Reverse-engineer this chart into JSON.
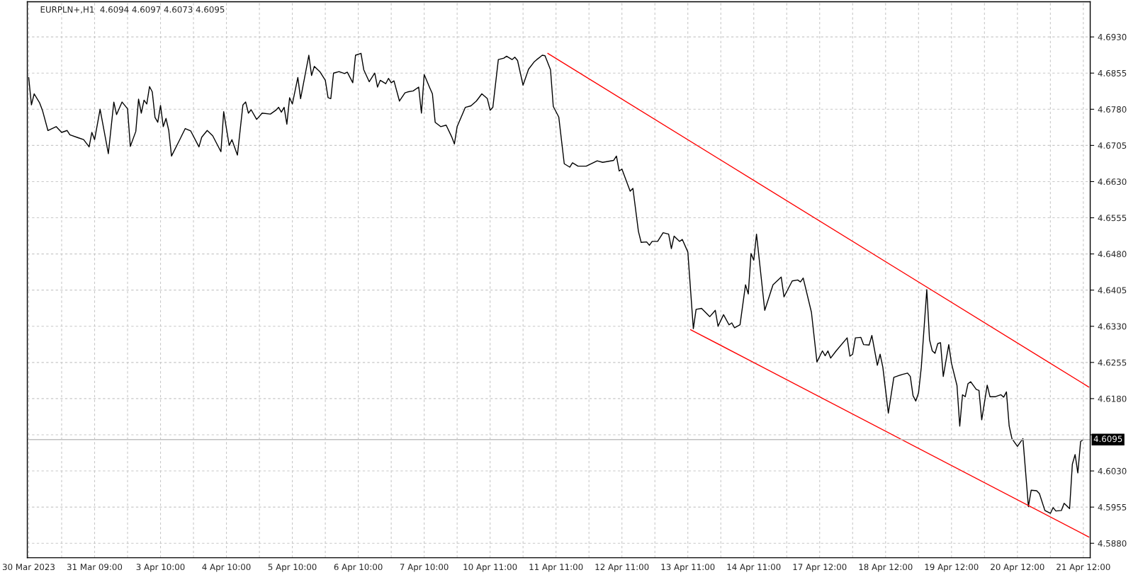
{
  "chart_data": {
    "type": "line",
    "title": "EURPLN+,H1  4.6094 4.6097 4.6073 4.6095",
    "categories": [
      "30 Mar 2023",
      null,
      null,
      null,
      null,
      null,
      null,
      null,
      null,
      null,
      null,
      null,
      null,
      null,
      null,
      null,
      null,
      null,
      null,
      null,
      null,
      null,
      null,
      null,
      "31 Mar 09:00",
      null,
      null,
      null,
      null,
      null,
      null,
      null,
      null,
      null,
      null,
      null,
      null,
      null,
      null,
      null,
      null,
      null,
      null,
      null,
      null,
      null,
      null,
      null,
      "3 Apr 10:00",
      null,
      null,
      null,
      null,
      null,
      null,
      null,
      null,
      null,
      null,
      null,
      null,
      null,
      null,
      null,
      null,
      null,
      null,
      null,
      null,
      null,
      null,
      null,
      "4 Apr 10:00",
      null,
      null,
      null,
      null,
      null,
      null,
      null,
      null,
      null,
      null,
      null,
      null,
      null,
      null,
      null,
      null,
      null,
      null,
      null,
      null,
      null,
      null,
      null,
      "5 Apr 10:00",
      null,
      null,
      null,
      null,
      null,
      null,
      null,
      null,
      null,
      null,
      null,
      null,
      null,
      null,
      null,
      null,
      null,
      null,
      null,
      null,
      null,
      null,
      null,
      "6 Apr 10:00",
      null,
      null,
      null,
      null,
      null,
      null,
      null,
      null,
      null,
      null,
      null,
      null,
      null,
      null,
      null,
      null,
      null,
      null,
      null,
      null,
      null,
      null,
      null,
      "7 Apr 10:00",
      null,
      null,
      null,
      null,
      null,
      null,
      null,
      null,
      null,
      null,
      null,
      null,
      null,
      null,
      null,
      null,
      null,
      null,
      null,
      null,
      null,
      null,
      null,
      "10 Apr 11:00",
      null,
      null,
      null,
      null,
      null,
      null,
      null,
      null,
      null,
      null,
      null,
      null,
      null,
      null,
      null,
      null,
      null,
      null,
      null,
      null,
      null,
      null,
      null,
      "11 Apr 11:00",
      null,
      null,
      null,
      null,
      null,
      null,
      null,
      null,
      null,
      null,
      null,
      null,
      null,
      null,
      null,
      null,
      null,
      null,
      null,
      null,
      null,
      null,
      null,
      "12 Apr 11:00",
      null,
      null,
      null,
      null,
      null,
      null,
      null,
      null,
      null,
      null,
      null,
      null,
      null,
      null,
      null,
      null,
      null,
      null,
      null,
      null,
      null,
      null,
      null,
      "13 Apr 11:00",
      null,
      null,
      null,
      null,
      null,
      null,
      null,
      null,
      null,
      null,
      null,
      null,
      null,
      null,
      null,
      null,
      null,
      null,
      null,
      null,
      null,
      null,
      null,
      "14 Apr 11:00",
      null,
      null,
      null,
      null,
      null,
      null,
      null,
      null,
      null,
      null,
      null,
      null,
      null,
      null,
      null,
      null,
      null,
      null,
      null,
      null,
      null,
      null,
      null,
      "17 Apr 12:00",
      null,
      null,
      null,
      null,
      null,
      null,
      null,
      null,
      null,
      null,
      null,
      null,
      null,
      null,
      null,
      null,
      null,
      null,
      null,
      null,
      null,
      null,
      null,
      "18 Apr 12:00",
      null,
      null,
      null,
      null,
      null,
      null,
      null,
      null,
      null,
      null,
      null,
      null,
      null,
      null,
      null,
      null,
      null,
      null,
      null,
      null,
      null,
      null,
      null,
      "19 Apr 12:00",
      null,
      null,
      null,
      null,
      null,
      null,
      null,
      null,
      null,
      null,
      null,
      null,
      null,
      null,
      null,
      null,
      null,
      null,
      null,
      null,
      null,
      null,
      null,
      "20 Apr 12:00",
      null,
      null,
      null,
      null,
      null,
      null,
      null,
      null,
      null,
      null,
      null,
      null,
      null,
      null,
      null,
      null,
      null,
      null,
      null,
      null,
      null,
      null,
      null,
      "21 Apr 12:00",
      null,
      null
    ],
    "ylim": [
      4.585,
      4.7003
    ],
    "yticks": [
      {
        "value": 4.588,
        "label": "4.5880"
      },
      {
        "value": 4.5955,
        "label": "4.5955"
      },
      {
        "value": 4.603,
        "label": "4.6030"
      },
      {
        "value": 4.6105,
        "label": null
      },
      {
        "value": 4.618,
        "label": "4.6180"
      },
      {
        "value": 4.6255,
        "label": "4.6255"
      },
      {
        "value": 4.633,
        "label": "4.6330"
      },
      {
        "value": 4.6405,
        "label": "4.6405"
      },
      {
        "value": 4.648,
        "label": "4.6480"
      },
      {
        "value": 4.6555,
        "label": "4.6555"
      },
      {
        "value": 4.663,
        "label": "4.6630"
      },
      {
        "value": 4.6705,
        "label": "4.6705"
      },
      {
        "value": 4.678,
        "label": "4.6780"
      },
      {
        "value": 4.6855,
        "label": "4.6855"
      },
      {
        "value": 4.693,
        "label": "4.6930"
      }
    ],
    "grid": true,
    "ref_lines": [
      {
        "axis": "y",
        "value": 4.6095,
        "label": "4.6095",
        "color": "#c0c0c0"
      }
    ],
    "series": [
      {
        "color": "#000000",
        "values": [
          4.6846,
          4.6789,
          4.6812,
          null,
          4.6793,
          4.6778,
          null,
          4.6736,
          null,
          null,
          4.6744,
          null,
          4.6732,
          null,
          4.6736,
          4.6727,
          null,
          null,
          4.6721,
          null,
          4.6717,
          null,
          4.6702,
          4.6732,
          4.6717,
          null,
          4.678,
          null,
          null,
          4.6688,
          null,
          4.6795,
          4.6769,
          null,
          4.6795,
          null,
          4.6781,
          4.6703,
          null,
          4.6734,
          4.6801,
          4.6772,
          4.6799,
          4.6791,
          4.6827,
          4.6816,
          4.6763,
          4.6753,
          4.6788,
          4.6744,
          4.6761,
          4.6736,
          4.6683,
          null,
          null,
          4.6717,
          null,
          4.674,
          null,
          4.6735,
          null,
          null,
          4.6702,
          4.6722,
          null,
          4.6736,
          null,
          4.6725,
          null,
          null,
          4.6692,
          4.6775,
          null,
          4.6705,
          4.6717,
          null,
          4.6685,
          null,
          4.6789,
          4.6795,
          4.6772,
          4.6779,
          null,
          4.6759,
          null,
          4.6772,
          null,
          null,
          4.677,
          null,
          4.6778,
          4.6784,
          4.6774,
          4.6784,
          4.6749,
          4.6804,
          4.6791,
          null,
          4.6846,
          4.6802,
          null,
          null,
          4.6892,
          4.685,
          4.6869,
          null,
          4.6858,
          null,
          4.684,
          4.6804,
          4.6802,
          4.6855,
          null,
          4.6858,
          null,
          4.6854,
          4.6857,
          null,
          4.6835,
          4.6892,
          null,
          4.6896,
          4.6862,
          null,
          4.6837,
          null,
          4.6855,
          4.6826,
          4.684,
          null,
          4.6833,
          4.6844,
          4.6835,
          4.6839,
          null,
          4.6797,
          null,
          4.6814,
          4.6816,
          null,
          4.6818,
          null,
          4.6826,
          4.6772,
          4.6852,
          null,
          4.6825,
          4.6812,
          4.6753,
          null,
          4.6744,
          null,
          4.6747,
          null,
          4.6723,
          4.6708,
          4.6744,
          null,
          null,
          4.6784,
          null,
          4.6787,
          null,
          4.6797,
          null,
          4.6812,
          null,
          4.6802,
          4.6778,
          4.6784,
          null,
          4.6883,
          null,
          4.6886,
          4.689,
          null,
          4.6883,
          4.6888,
          4.6881,
          null,
          4.683,
          null,
          4.6863,
          null,
          4.6878,
          4.6883,
          null,
          4.6892,
          4.6891,
          null,
          4.6862,
          4.6786,
          null,
          4.6764,
          null,
          4.6667,
          null,
          4.666,
          4.6669,
          null,
          4.6662,
          null,
          null,
          4.6662,
          null,
          null,
          null,
          4.6673,
          null,
          4.667,
          null,
          null,
          null,
          4.6674,
          4.6683,
          4.6652,
          4.6656,
          null,
          null,
          4.661,
          4.6616,
          null,
          4.6527,
          4.6504,
          null,
          4.6505,
          4.6498,
          4.6506,
          null,
          4.6506,
          null,
          4.6524,
          null,
          4.6521,
          4.6491,
          4.6517,
          null,
          4.6506,
          4.651,
          null,
          4.6484,
          null,
          4.6325,
          4.6365,
          null,
          4.6367,
          null,
          null,
          4.635,
          null,
          4.6363,
          4.633,
          null,
          4.6354,
          null,
          4.6333,
          4.6337,
          4.6327,
          null,
          4.6333,
          null,
          4.6416,
          4.6397,
          4.6481,
          4.6467,
          4.6521,
          null,
          null,
          4.6363,
          null,
          null,
          4.6416,
          null,
          null,
          4.6432,
          4.6391,
          null,
          null,
          4.6424,
          null,
          4.6426,
          4.6422,
          4.643,
          null,
          null,
          4.6359,
          null,
          4.6256,
          null,
          4.6279,
          4.6269,
          4.6279,
          4.6264,
          null,
          4.6279,
          null,
          null,
          null,
          4.6306,
          4.6268,
          4.6272,
          4.6306,
          null,
          4.6307,
          4.6292,
          null,
          4.6291,
          4.6311,
          null,
          4.6249,
          4.6272,
          4.6245,
          null,
          4.615,
          null,
          4.6224,
          null,
          4.6228,
          4.623,
          null,
          4.6233,
          4.6226,
          4.6186,
          4.6175,
          4.6192,
          4.6245,
          null,
          4.6406,
          4.6302,
          4.6279,
          4.6274,
          4.6294,
          4.6296,
          4.6226,
          null,
          4.6292,
          4.6253,
          null,
          4.6207,
          4.6123,
          4.6188,
          4.6184,
          4.6211,
          4.6215,
          null,
          4.6199,
          4.6197,
          4.6136,
          null,
          4.6208,
          4.6184,
          null,
          4.6184,
          null,
          4.6188,
          4.6183,
          4.6194,
          4.6123,
          4.6097,
          null,
          4.6081,
          null,
          4.6097,
          null,
          4.5956,
          4.599,
          null,
          4.5989,
          4.5983,
          null,
          4.5948,
          null,
          4.5942,
          4.5954,
          4.5947,
          null,
          4.5948,
          4.5963,
          null,
          4.5952,
          4.6044,
          4.6064,
          4.6026,
          4.6091,
          4.6095,
          null,
          null
        ]
      },
      {
        "type": "line",
        "color": "#ff0000",
        "values": [
          null,
          null,
          null,
          null,
          null,
          null,
          null,
          null,
          null,
          null,
          null,
          null,
          null,
          null,
          null,
          null,
          null,
          null,
          null,
          null,
          null,
          null,
          null,
          null,
          null,
          null,
          null,
          null,
          null,
          null,
          null,
          null,
          null,
          null,
          null,
          null,
          null,
          null,
          null,
          null,
          null,
          null,
          null,
          null,
          null,
          null,
          null,
          null,
          null,
          null,
          null,
          null,
          null,
          null,
          null,
          null,
          null,
          null,
          null,
          null,
          null,
          null,
          null,
          null,
          null,
          null,
          null,
          null,
          null,
          null,
          null,
          null,
          null,
          null,
          null,
          null,
          null,
          null,
          null,
          null,
          null,
          null,
          null,
          null,
          null,
          null,
          null,
          null,
          null,
          null,
          null,
          null,
          null,
          null,
          null,
          null,
          null,
          null,
          null,
          null,
          null,
          null,
          null,
          null,
          null,
          null,
          null,
          null,
          null,
          null,
          null,
          null,
          null,
          null,
          null,
          null,
          null,
          null,
          null,
          null,
          null,
          null,
          null,
          null,
          null,
          null,
          null,
          null,
          null,
          null,
          null,
          null,
          null,
          null,
          null,
          null,
          null,
          null,
          null,
          null,
          null,
          null,
          null,
          null,
          null,
          null,
          null,
          null,
          null,
          null,
          null,
          null,
          null,
          null,
          null,
          null,
          null,
          null,
          null,
          null,
          null,
          null,
          null,
          null,
          null,
          null,
          null,
          null,
          null,
          null,
          null,
          null,
          null,
          null,
          null,
          null,
          null,
          null,
          null,
          null,
          null,
          null,
          null,
          null,
          null,
          null,
          null,
          null,
          null,
          4.6896,
          null,
          null,
          null,
          null,
          null,
          null,
          null,
          null,
          null,
          null,
          null,
          null,
          null,
          null,
          null,
          null,
          null,
          null,
          null,
          null,
          null,
          null,
          null,
          null,
          null,
          null,
          null,
          null,
          null,
          null,
          null,
          null,
          null,
          null,
          null,
          null,
          null,
          null,
          null,
          null,
          null,
          null,
          null,
          null,
          null,
          null,
          null,
          null,
          null,
          null,
          null,
          null,
          null,
          null,
          null,
          null,
          null,
          null,
          null,
          null,
          null,
          null,
          null,
          null,
          null,
          null,
          null,
          null,
          null,
          null,
          null,
          null,
          null,
          null,
          null,
          null,
          null,
          null,
          null,
          null,
          null,
          null,
          null,
          null,
          null,
          null,
          null,
          null,
          null,
          null,
          null,
          null,
          null,
          null,
          null,
          null,
          null,
          null,
          null,
          null,
          null,
          null,
          null,
          null,
          null,
          null,
          null,
          null,
          null,
          null,
          null,
          null,
          null,
          null,
          null,
          null,
          null,
          null,
          null,
          null,
          null,
          null,
          null,
          null,
          null,
          null,
          null,
          null,
          null,
          null,
          null,
          null,
          null,
          null,
          null,
          null,
          null,
          null,
          null,
          null,
          null,
          null,
          null,
          null,
          null,
          null,
          null,
          null,
          null,
          null,
          null,
          null,
          null,
          null,
          null,
          null,
          null,
          null,
          null,
          null,
          null,
          null,
          null,
          null,
          null,
          null,
          null,
          null,
          null,
          null,
          null,
          null,
          null,
          null,
          null,
          null,
          null,
          null,
          null,
          null,
          null,
          null,
          null,
          null,
          null,
          null,
          null,
          null,
          null,
          null,
          null,
          null,
          null,
          null,
          null,
          null,
          4.6204
        ]
      },
      {
        "type": "line",
        "color": "#ff0000",
        "values": [
          null,
          null,
          null,
          null,
          null,
          null,
          null,
          null,
          null,
          null,
          null,
          null,
          null,
          null,
          null,
          null,
          null,
          null,
          null,
          null,
          null,
          null,
          null,
          null,
          null,
          null,
          null,
          null,
          null,
          null,
          null,
          null,
          null,
          null,
          null,
          null,
          null,
          null,
          null,
          null,
          null,
          null,
          null,
          null,
          null,
          null,
          null,
          null,
          null,
          null,
          null,
          null,
          null,
          null,
          null,
          null,
          null,
          null,
          null,
          null,
          null,
          null,
          null,
          null,
          null,
          null,
          null,
          null,
          null,
          null,
          null,
          null,
          null,
          null,
          null,
          null,
          null,
          null,
          null,
          null,
          null,
          null,
          null,
          null,
          null,
          null,
          null,
          null,
          null,
          null,
          null,
          null,
          null,
          null,
          null,
          null,
          null,
          null,
          null,
          null,
          null,
          null,
          null,
          null,
          null,
          null,
          null,
          null,
          null,
          null,
          null,
          null,
          null,
          null,
          null,
          null,
          null,
          null,
          null,
          null,
          null,
          null,
          null,
          null,
          null,
          null,
          null,
          null,
          null,
          null,
          null,
          null,
          null,
          null,
          null,
          null,
          null,
          null,
          null,
          null,
          null,
          null,
          null,
          null,
          null,
          null,
          null,
          null,
          null,
          null,
          null,
          null,
          null,
          null,
          null,
          null,
          null,
          null,
          null,
          null,
          null,
          null,
          null,
          null,
          null,
          null,
          null,
          null,
          null,
          null,
          null,
          null,
          null,
          null,
          null,
          null,
          null,
          null,
          null,
          null,
          null,
          null,
          null,
          null,
          null,
          null,
          null,
          null,
          null,
          null,
          null,
          null,
          null,
          null,
          null,
          null,
          null,
          null,
          null,
          null,
          null,
          null,
          null,
          null,
          null,
          null,
          null,
          null,
          null,
          null,
          null,
          null,
          null,
          null,
          null,
          null,
          null,
          null,
          null,
          null,
          null,
          null,
          null,
          null,
          null,
          null,
          null,
          null,
          null,
          null,
          null,
          null,
          null,
          null,
          null,
          null,
          null,
          null,
          null,
          null,
          null,
          4.6323,
          null,
          null,
          null,
          null,
          null,
          null,
          null,
          null,
          null,
          null,
          null,
          null,
          null,
          null,
          null,
          null,
          null,
          null,
          null,
          null,
          null,
          null,
          null,
          null,
          null,
          null,
          null,
          null,
          null,
          null,
          null,
          null,
          null,
          null,
          null,
          null,
          null,
          null,
          null,
          null,
          null,
          null,
          null,
          null,
          null,
          null,
          null,
          null,
          null,
          null,
          null,
          null,
          null,
          null,
          null,
          null,
          null,
          null,
          null,
          null,
          null,
          null,
          null,
          null,
          null,
          null,
          null,
          null,
          null,
          null,
          null,
          null,
          null,
          null,
          null,
          null,
          null,
          null,
          null,
          null,
          null,
          null,
          null,
          null,
          null,
          null,
          null,
          null,
          null,
          null,
          null,
          null,
          null,
          null,
          null,
          null,
          null,
          null,
          null,
          null,
          null,
          null,
          null,
          null,
          null,
          null,
          null,
          null,
          null,
          null,
          null,
          null,
          null,
          null,
          null,
          null,
          null,
          null,
          null,
          null,
          null,
          null,
          null,
          null,
          null,
          null,
          null,
          null,
          null,
          null,
          null,
          null,
          null,
          null,
          null,
          null,
          null,
          null,
          null,
          null,
          null,
          null,
          null,
          null,
          4.5893
        ]
      }
    ]
  }
}
